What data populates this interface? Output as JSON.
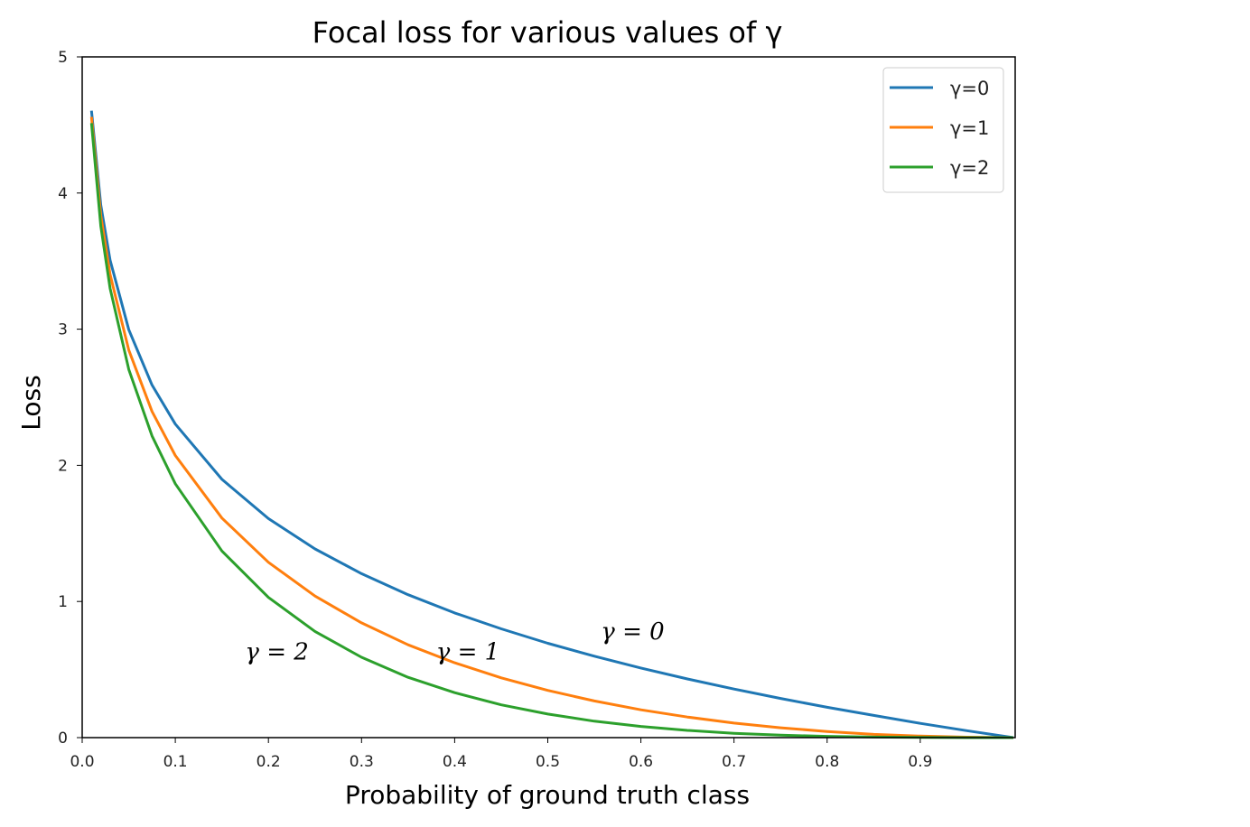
{
  "chart_data": {
    "type": "line",
    "title": "Focal loss for various values of γ",
    "xlabel": "Probability of ground truth class",
    "ylabel": "Loss",
    "xlim": [
      0,
      1
    ],
    "ylim": [
      0,
      5
    ],
    "xticks": [
      "0.0",
      "0.1",
      "0.2",
      "0.3",
      "0.4",
      "0.5",
      "0.6",
      "0.7",
      "0.8",
      "0.9"
    ],
    "yticks": [
      "0",
      "1",
      "2",
      "3",
      "4",
      "5"
    ],
    "grid": false,
    "legend_position": "top-right",
    "x": [
      0.01,
      0.02,
      0.03,
      0.05,
      0.075,
      0.1,
      0.15,
      0.2,
      0.25,
      0.3,
      0.35,
      0.4,
      0.45,
      0.5,
      0.55,
      0.6,
      0.65,
      0.7,
      0.75,
      0.8,
      0.85,
      0.9,
      0.95,
      1.0
    ],
    "series": [
      {
        "name": "γ=0",
        "color": "#1f77b4",
        "values": [
          4.605,
          3.912,
          3.507,
          2.996,
          2.59,
          2.303,
          1.897,
          1.609,
          1.386,
          1.204,
          1.05,
          0.916,
          0.799,
          0.693,
          0.598,
          0.511,
          0.431,
          0.357,
          0.288,
          0.223,
          0.163,
          0.105,
          0.051,
          0
        ]
      },
      {
        "name": "γ=1",
        "color": "#ff7f0e",
        "values": [
          4.559,
          3.834,
          3.402,
          2.846,
          2.396,
          2.072,
          1.613,
          1.288,
          1.04,
          0.843,
          0.682,
          0.55,
          0.439,
          0.347,
          0.269,
          0.204,
          0.151,
          0.107,
          0.072,
          0.045,
          0.024,
          0.011,
          0.003,
          0
        ]
      },
      {
        "name": "γ=2",
        "color": "#2ca02c",
        "values": [
          4.513,
          3.757,
          3.3,
          2.704,
          2.216,
          1.865,
          1.371,
          1.03,
          0.78,
          0.59,
          0.443,
          0.33,
          0.241,
          0.173,
          0.121,
          0.082,
          0.053,
          0.032,
          0.018,
          0.009,
          0.004,
          0.001,
          0.0,
          0
        ]
      }
    ],
    "annotations": [
      {
        "text": "γ = 0",
        "x": 0.557,
        "y": 0.79
      },
      {
        "text": "γ = 1",
        "x": 0.38,
        "y": 0.64
      },
      {
        "text": "γ = 2",
        "x": 0.175,
        "y": 0.64
      }
    ]
  }
}
